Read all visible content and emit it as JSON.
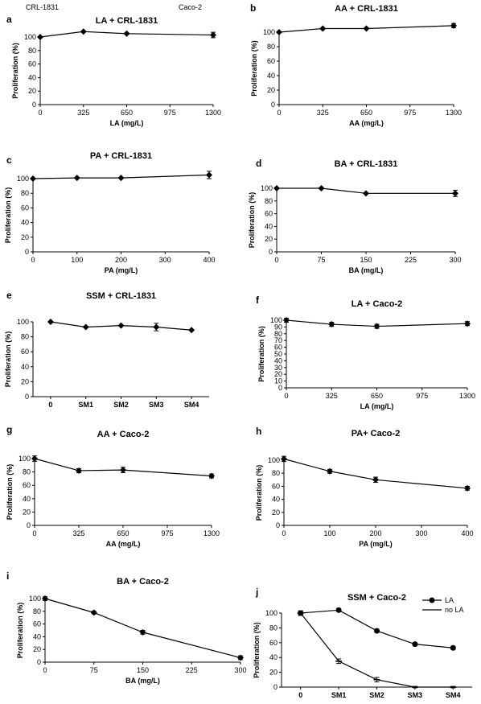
{
  "header": {
    "left": "CRL-1831",
    "right": "Caco-2"
  },
  "chart_data": [
    {
      "letter": "a",
      "title": "LA + CRL-1831",
      "type": "line",
      "xlabel": "LA (mg/L)",
      "ylabel": "Proliferation (%)",
      "x": [
        0,
        325,
        650,
        1300
      ],
      "xticks": [
        "0",
        "325",
        "650",
        "975",
        "1300"
      ],
      "xlim": [
        0,
        1300
      ],
      "ylim": [
        0,
        100
      ],
      "yticks": [
        "0",
        "20",
        "40",
        "60",
        "80",
        "100"
      ],
      "series": [
        {
          "name": "",
          "marker": "diamond",
          "values": [
            100,
            108,
            105,
            103
          ],
          "errors": [
            0,
            0,
            0,
            4
          ]
        }
      ]
    },
    {
      "letter": "b",
      "title": "AA + CRL-1831",
      "type": "line",
      "xlabel": "AA (mg/L)",
      "ylabel": "Proliferation (%)",
      "x": [
        0,
        325,
        650,
        1300
      ],
      "xticks": [
        "0",
        "325",
        "650",
        "975",
        "1300"
      ],
      "xlim": [
        0,
        1300
      ],
      "ylim": [
        0,
        100
      ],
      "yticks": [
        "0",
        "20",
        "40",
        "60",
        "80",
        "100"
      ],
      "series": [
        {
          "name": "",
          "marker": "diamond",
          "values": [
            100,
            105,
            105,
            109
          ],
          "errors": [
            0,
            0,
            0,
            3
          ]
        }
      ]
    },
    {
      "letter": "c",
      "title": "PA + CRL-1831",
      "type": "line",
      "xlabel": "PA (mg/L)",
      "ylabel": "Proliferation (%)",
      "x": [
        0,
        100,
        200,
        400
      ],
      "xticks": [
        "0",
        "100",
        "200",
        "300",
        "400"
      ],
      "xlim": [
        0,
        400
      ],
      "ylim": [
        0,
        100
      ],
      "yticks": [
        "0",
        "20",
        "40",
        "60",
        "80",
        "100"
      ],
      "series": [
        {
          "name": "",
          "marker": "diamond",
          "values": [
            100,
            101,
            101,
            105
          ],
          "errors": [
            0,
            0,
            0,
            5
          ]
        }
      ]
    },
    {
      "letter": "d",
      "title": "BA + CRL-1831",
      "type": "line",
      "xlabel": "BA (mg/L)",
      "ylabel": "Proliferation (%)",
      "x": [
        0,
        75,
        150,
        300
      ],
      "xticks": [
        "0",
        "75",
        "150",
        "225",
        "300"
      ],
      "xlim": [
        0,
        300
      ],
      "ylim": [
        0,
        100
      ],
      "yticks": [
        "0",
        "20",
        "40",
        "60",
        "80",
        "100"
      ],
      "series": [
        {
          "name": "",
          "marker": "diamond",
          "values": [
            100,
            100,
            92,
            92
          ],
          "errors": [
            0,
            0,
            0,
            5
          ]
        }
      ]
    },
    {
      "letter": "e",
      "title": "SSM + CRL-1831",
      "type": "line",
      "xlabel": "",
      "ylabel": "Proliferation (%)",
      "categories": [
        "0",
        "SM1",
        "SM2",
        "SM3",
        "SM4"
      ],
      "ylim": [
        0,
        100
      ],
      "yticks": [
        "0",
        "20",
        "40",
        "60",
        "80",
        "100"
      ],
      "series": [
        {
          "name": "",
          "marker": "diamond",
          "values": [
            100,
            93,
            95,
            93,
            89
          ],
          "errors": [
            0,
            0,
            0,
            5,
            0
          ]
        }
      ]
    },
    {
      "letter": "f",
      "title": "LA + Caco-2",
      "type": "line",
      "xlabel": "LA (mg/L)",
      "ylabel": "Proliferation (%)",
      "x": [
        0,
        325,
        650,
        1300
      ],
      "xticks": [
        "0",
        "325",
        "650",
        "975",
        "1300"
      ],
      "xlim": [
        0,
        1300
      ],
      "ylim": [
        0,
        100
      ],
      "yticks": [
        "0",
        "10",
        "20",
        "30",
        "40",
        "50",
        "60",
        "70",
        "80",
        "90",
        "100"
      ],
      "series": [
        {
          "name": "",
          "marker": "diamond",
          "values": [
            100,
            94,
            91,
            95
          ],
          "errors": [
            3,
            3,
            3,
            3
          ]
        }
      ]
    },
    {
      "letter": "g",
      "title": "AA + Caco-2",
      "type": "line",
      "xlabel": "AA (mg/L)",
      "ylabel": "Proliferation (%)",
      "x": [
        0,
        325,
        650,
        1300
      ],
      "xticks": [
        "0",
        "325",
        "650",
        "975",
        "1300"
      ],
      "xlim": [
        0,
        1300
      ],
      "ylim": [
        0,
        100
      ],
      "yticks": [
        "0",
        "20",
        "40",
        "60",
        "80",
        "100"
      ],
      "series": [
        {
          "name": "",
          "marker": "diamond",
          "values": [
            100,
            82,
            83,
            74
          ],
          "errors": [
            4,
            3,
            4,
            3
          ]
        }
      ]
    },
    {
      "letter": "h",
      "title": "PA+ Caco-2",
      "type": "line",
      "xlabel": "PA (mg/L)",
      "ylabel": "Proliferation (%)",
      "x": [
        0,
        100,
        200,
        400
      ],
      "xticks": [
        "0",
        "100",
        "200",
        "300",
        "400"
      ],
      "xlim": [
        0,
        400
      ],
      "ylim": [
        0,
        100
      ],
      "yticks": [
        "0",
        "20",
        "40",
        "60",
        "80",
        "100"
      ],
      "series": [
        {
          "name": "",
          "marker": "diamond",
          "values": [
            102,
            83,
            70,
            57
          ],
          "errors": [
            4,
            3,
            4,
            3
          ]
        }
      ]
    },
    {
      "letter": "i",
      "title": "BA + Caco-2",
      "type": "line",
      "xlabel": "BA (mg/L)",
      "ylabel": "Proliferation (%)",
      "x": [
        0,
        75,
        150,
        300
      ],
      "xticks": [
        "0",
        "75",
        "150",
        "225",
        "300"
      ],
      "xlim": [
        0,
        300
      ],
      "ylim": [
        0,
        100
      ],
      "yticks": [
        "0",
        "20",
        "40",
        "60",
        "80",
        "100"
      ],
      "series": [
        {
          "name": "",
          "marker": "diamond",
          "values": [
            100,
            78,
            47,
            7
          ],
          "errors": [
            3,
            2,
            3,
            3
          ]
        }
      ]
    },
    {
      "letter": "j",
      "title": "SSM + Caco-2",
      "type": "line",
      "xlabel": "",
      "ylabel": "Proliferation (%)",
      "categories": [
        "0",
        "SM1",
        "SM2",
        "SM3",
        "SM4"
      ],
      "ylim": [
        0,
        100
      ],
      "yticks": [
        "0",
        "20",
        "40",
        "60",
        "80",
        "100"
      ],
      "legend": "top-right",
      "series": [
        {
          "name": "LA",
          "marker": "circle",
          "values": [
            100,
            104,
            76,
            58,
            53
          ],
          "errors": [
            3,
            2,
            2,
            2,
            2
          ]
        },
        {
          "name": "no LA",
          "marker": "dash",
          "values": [
            100,
            35,
            10,
            0,
            0
          ],
          "errors": [
            3,
            3,
            3,
            1,
            1
          ]
        }
      ]
    }
  ]
}
